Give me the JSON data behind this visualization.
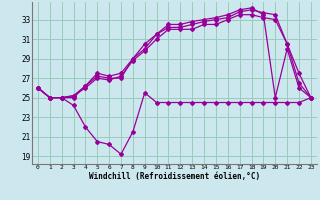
{
  "xlabel": "Windchill (Refroidissement éolien,°C)",
  "background_color": "#cce8ee",
  "grid_color": "#99ccbb",
  "line_color": "#990099",
  "x_labels": [
    "0",
    "1",
    "2",
    "3",
    "4",
    "5",
    "6",
    "7",
    "8",
    "9",
    "10",
    "11",
    "12",
    "13",
    "14",
    "15",
    "16",
    "17",
    "18",
    "19",
    "20",
    "21",
    "22",
    "23"
  ],
  "y_ticks": [
    19,
    21,
    23,
    25,
    27,
    29,
    31,
    33
  ],
  "ylim": [
    18.2,
    34.8
  ],
  "xlim": [
    -0.5,
    23.5
  ],
  "series1": [
    26.0,
    25.0,
    25.0,
    24.2,
    22.0,
    20.5,
    20.2,
    19.2,
    21.5,
    25.5,
    24.5,
    24.5,
    24.5,
    24.5,
    24.5,
    24.5,
    24.5,
    24.5,
    24.5,
    24.5,
    24.5,
    24.5,
    24.5,
    25.0
  ],
  "series2": [
    26.0,
    25.0,
    25.0,
    25.2,
    26.0,
    27.0,
    26.8,
    27.2,
    28.8,
    29.8,
    31.0,
    32.0,
    32.0,
    32.0,
    32.5,
    32.5,
    33.0,
    33.5,
    33.5,
    33.2,
    33.0,
    30.5,
    27.5,
    25.0
  ],
  "series3": [
    26.0,
    25.0,
    25.0,
    25.2,
    26.2,
    27.5,
    27.2,
    27.5,
    29.0,
    30.5,
    31.5,
    32.2,
    32.2,
    32.5,
    32.8,
    33.0,
    33.2,
    33.8,
    34.0,
    33.7,
    33.5,
    30.5,
    26.5,
    25.0
  ],
  "series4": [
    26.0,
    25.0,
    25.0,
    25.0,
    26.2,
    27.2,
    27.0,
    27.0,
    29.0,
    30.0,
    31.5,
    32.5,
    32.5,
    32.8,
    33.0,
    33.2,
    33.5,
    34.0,
    34.2,
    33.5,
    25.0,
    30.0,
    26.0,
    25.0
  ]
}
